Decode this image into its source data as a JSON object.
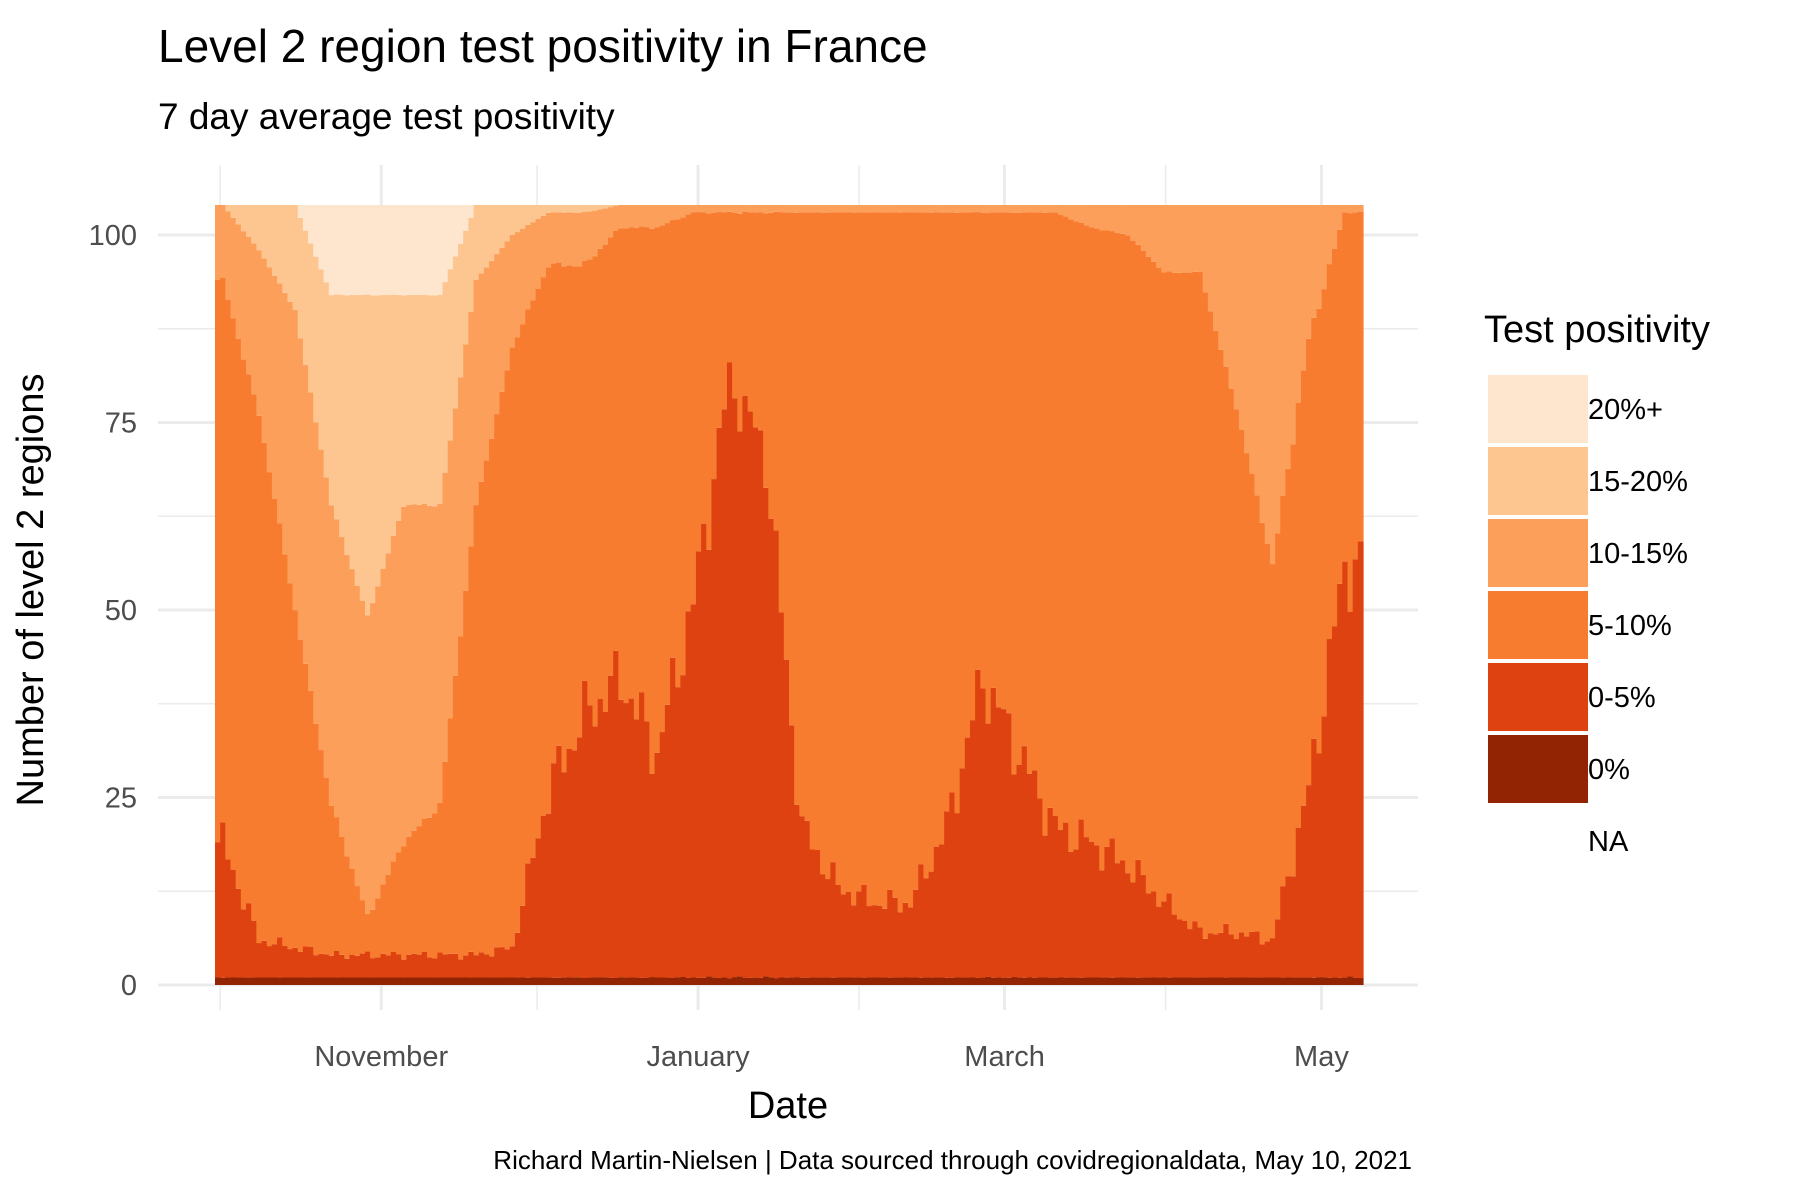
{
  "title": "Level 2 region test positivity in France",
  "subtitle": "7 day average test positivity",
  "caption": "Richard Martin-Nielsen | Data sourced through covidregionaldata, May 10, 2021",
  "chart_data": {
    "type": "bar",
    "stacked": true,
    "xlabel": "Date",
    "ylabel": "Number of level 2 regions",
    "x_ticks": [
      "November",
      "January",
      "March",
      "May"
    ],
    "y_ticks": [
      "0",
      "25",
      "50",
      "75",
      "100"
    ],
    "ylim": [
      0,
      104
    ],
    "xlim": [
      "2020-09-30",
      "2021-05-09"
    ],
    "grid": true,
    "legend": {
      "title": "Test positivity",
      "position": "right",
      "entries": [
        {
          "label": "20%+",
          "color": "#FEE6CE"
        },
        {
          "label": "15-20%",
          "color": "#FDC691"
        },
        {
          "label": "10-15%",
          "color": "#FB9F5B"
        },
        {
          "label": "5-10%",
          "color": "#F87C30"
        },
        {
          "label": "0-5%",
          "color": "#DD4210"
        },
        {
          "label": "0%",
          "color": "#922404"
        },
        {
          "label": "NA",
          "color": "#ffffff"
        }
      ]
    },
    "series_order_bottom_to_top": [
      "0%",
      "0-5%",
      "5-10%",
      "10-15%",
      "15-20%",
      "20%+"
    ],
    "total_regions": 104,
    "dates": [
      "2020-10-01",
      "2020-10-08",
      "2020-10-15",
      "2020-10-22",
      "2020-10-29",
      "2020-11-05",
      "2020-11-12",
      "2020-11-19",
      "2020-11-26",
      "2020-12-03",
      "2020-12-10",
      "2020-12-17",
      "2020-12-24",
      "2020-12-31",
      "2021-01-07",
      "2021-01-14",
      "2021-01-21",
      "2021-01-28",
      "2021-02-04",
      "2021-02-11",
      "2021-02-18",
      "2021-02-25",
      "2021-03-04",
      "2021-03-11",
      "2021-03-18",
      "2021-03-25",
      "2021-04-01",
      "2021-04-08",
      "2021-04-15",
      "2021-04-22",
      "2021-04-29",
      "2021-05-06"
    ],
    "series": [
      {
        "name": "0%",
        "values": [
          1,
          1,
          1,
          1,
          1,
          1,
          1,
          1,
          1,
          1,
          1,
          1,
          1,
          1,
          1,
          1,
          1,
          1,
          1,
          1,
          1,
          1,
          1,
          1,
          1,
          1,
          1,
          1,
          1,
          1,
          1,
          1
        ]
      },
      {
        "name": "0-5%",
        "values": [
          18,
          5,
          4,
          3,
          3,
          3,
          3,
          3,
          4,
          25,
          35,
          40,
          30,
          50,
          80,
          70,
          20,
          12,
          10,
          10,
          20,
          40,
          30,
          20,
          18,
          15,
          10,
          6,
          6,
          5,
          25,
          55
        ]
      },
      {
        "name": "5-10%",
        "values": [
          75,
          70,
          45,
          20,
          5,
          15,
          20,
          60,
          80,
          70,
          60,
          60,
          70,
          52,
          22,
          32,
          82,
          90,
          92,
          92,
          82,
          62,
          72,
          82,
          82,
          84,
          84,
          88,
          70,
          50,
          60,
          47
        ]
      },
      {
        "name": "10-15%",
        "values": [
          10,
          22,
          40,
          40,
          40,
          45,
          40,
          30,
          15,
          7,
          7,
          3,
          3,
          1,
          1,
          1,
          1,
          1,
          1,
          1,
          1,
          1,
          1,
          1,
          3,
          4,
          9,
          9,
          27,
          48,
          18,
          1
        ]
      },
      {
        "name": "15-20%",
        "values": [
          0,
          6,
          14,
          28,
          43,
          28,
          28,
          10,
          4,
          1,
          1,
          0,
          0,
          0,
          0,
          0,
          0,
          0,
          0,
          0,
          0,
          0,
          0,
          0,
          0,
          0,
          0,
          0,
          0,
          0,
          0,
          0
        ]
      },
      {
        "name": "20%+",
        "values": [
          0,
          0,
          0,
          12,
          12,
          12,
          12,
          0,
          0,
          0,
          0,
          0,
          0,
          0,
          0,
          0,
          0,
          0,
          0,
          0,
          0,
          0,
          0,
          0,
          0,
          0,
          0,
          0,
          0,
          0,
          0,
          0
        ]
      }
    ]
  }
}
